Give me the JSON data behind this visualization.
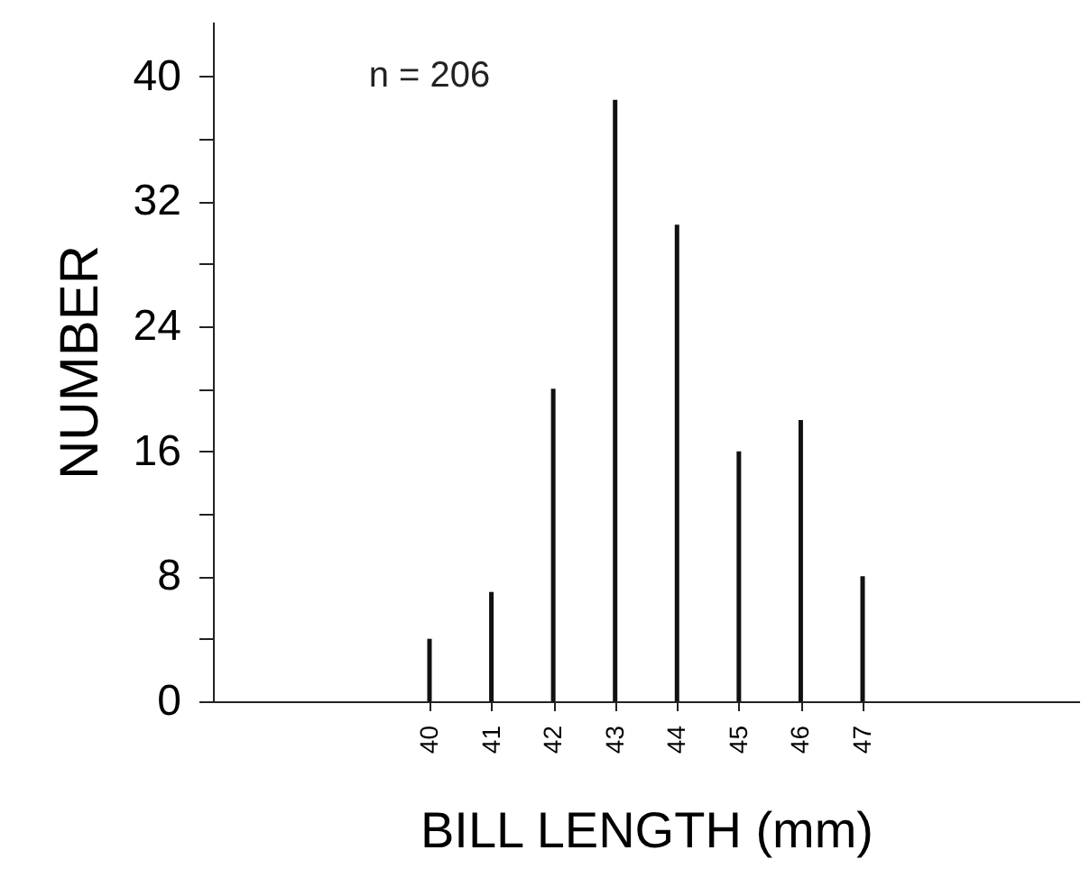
{
  "chart_data": {
    "type": "bar",
    "xlabel": "BILL LENGTH (mm)",
    "ylabel": "NUMBER",
    "x": [
      40,
      41,
      42,
      43,
      44,
      45,
      46,
      47
    ],
    "values": [
      4,
      7,
      20,
      38.5,
      30.5,
      16,
      18,
      8
    ],
    "color": "#111111",
    "xlim": [
      36.5,
      50.5
    ],
    "xticks": [
      40,
      41,
      42,
      43,
      44,
      45,
      46,
      47
    ],
    "ylim": [
      0,
      43.5
    ],
    "yticks": [
      0,
      {
        "value": 4,
        "label": null
      },
      8,
      {
        "value": 12,
        "label": null
      },
      16,
      {
        "value": 20,
        "label": null
      },
      24,
      {
        "value": 28,
        "label": null
      },
      32,
      {
        "value": 36,
        "label": null
      },
      40
    ],
    "annotations": [
      "n = 206"
    ],
    "grid": false
  }
}
